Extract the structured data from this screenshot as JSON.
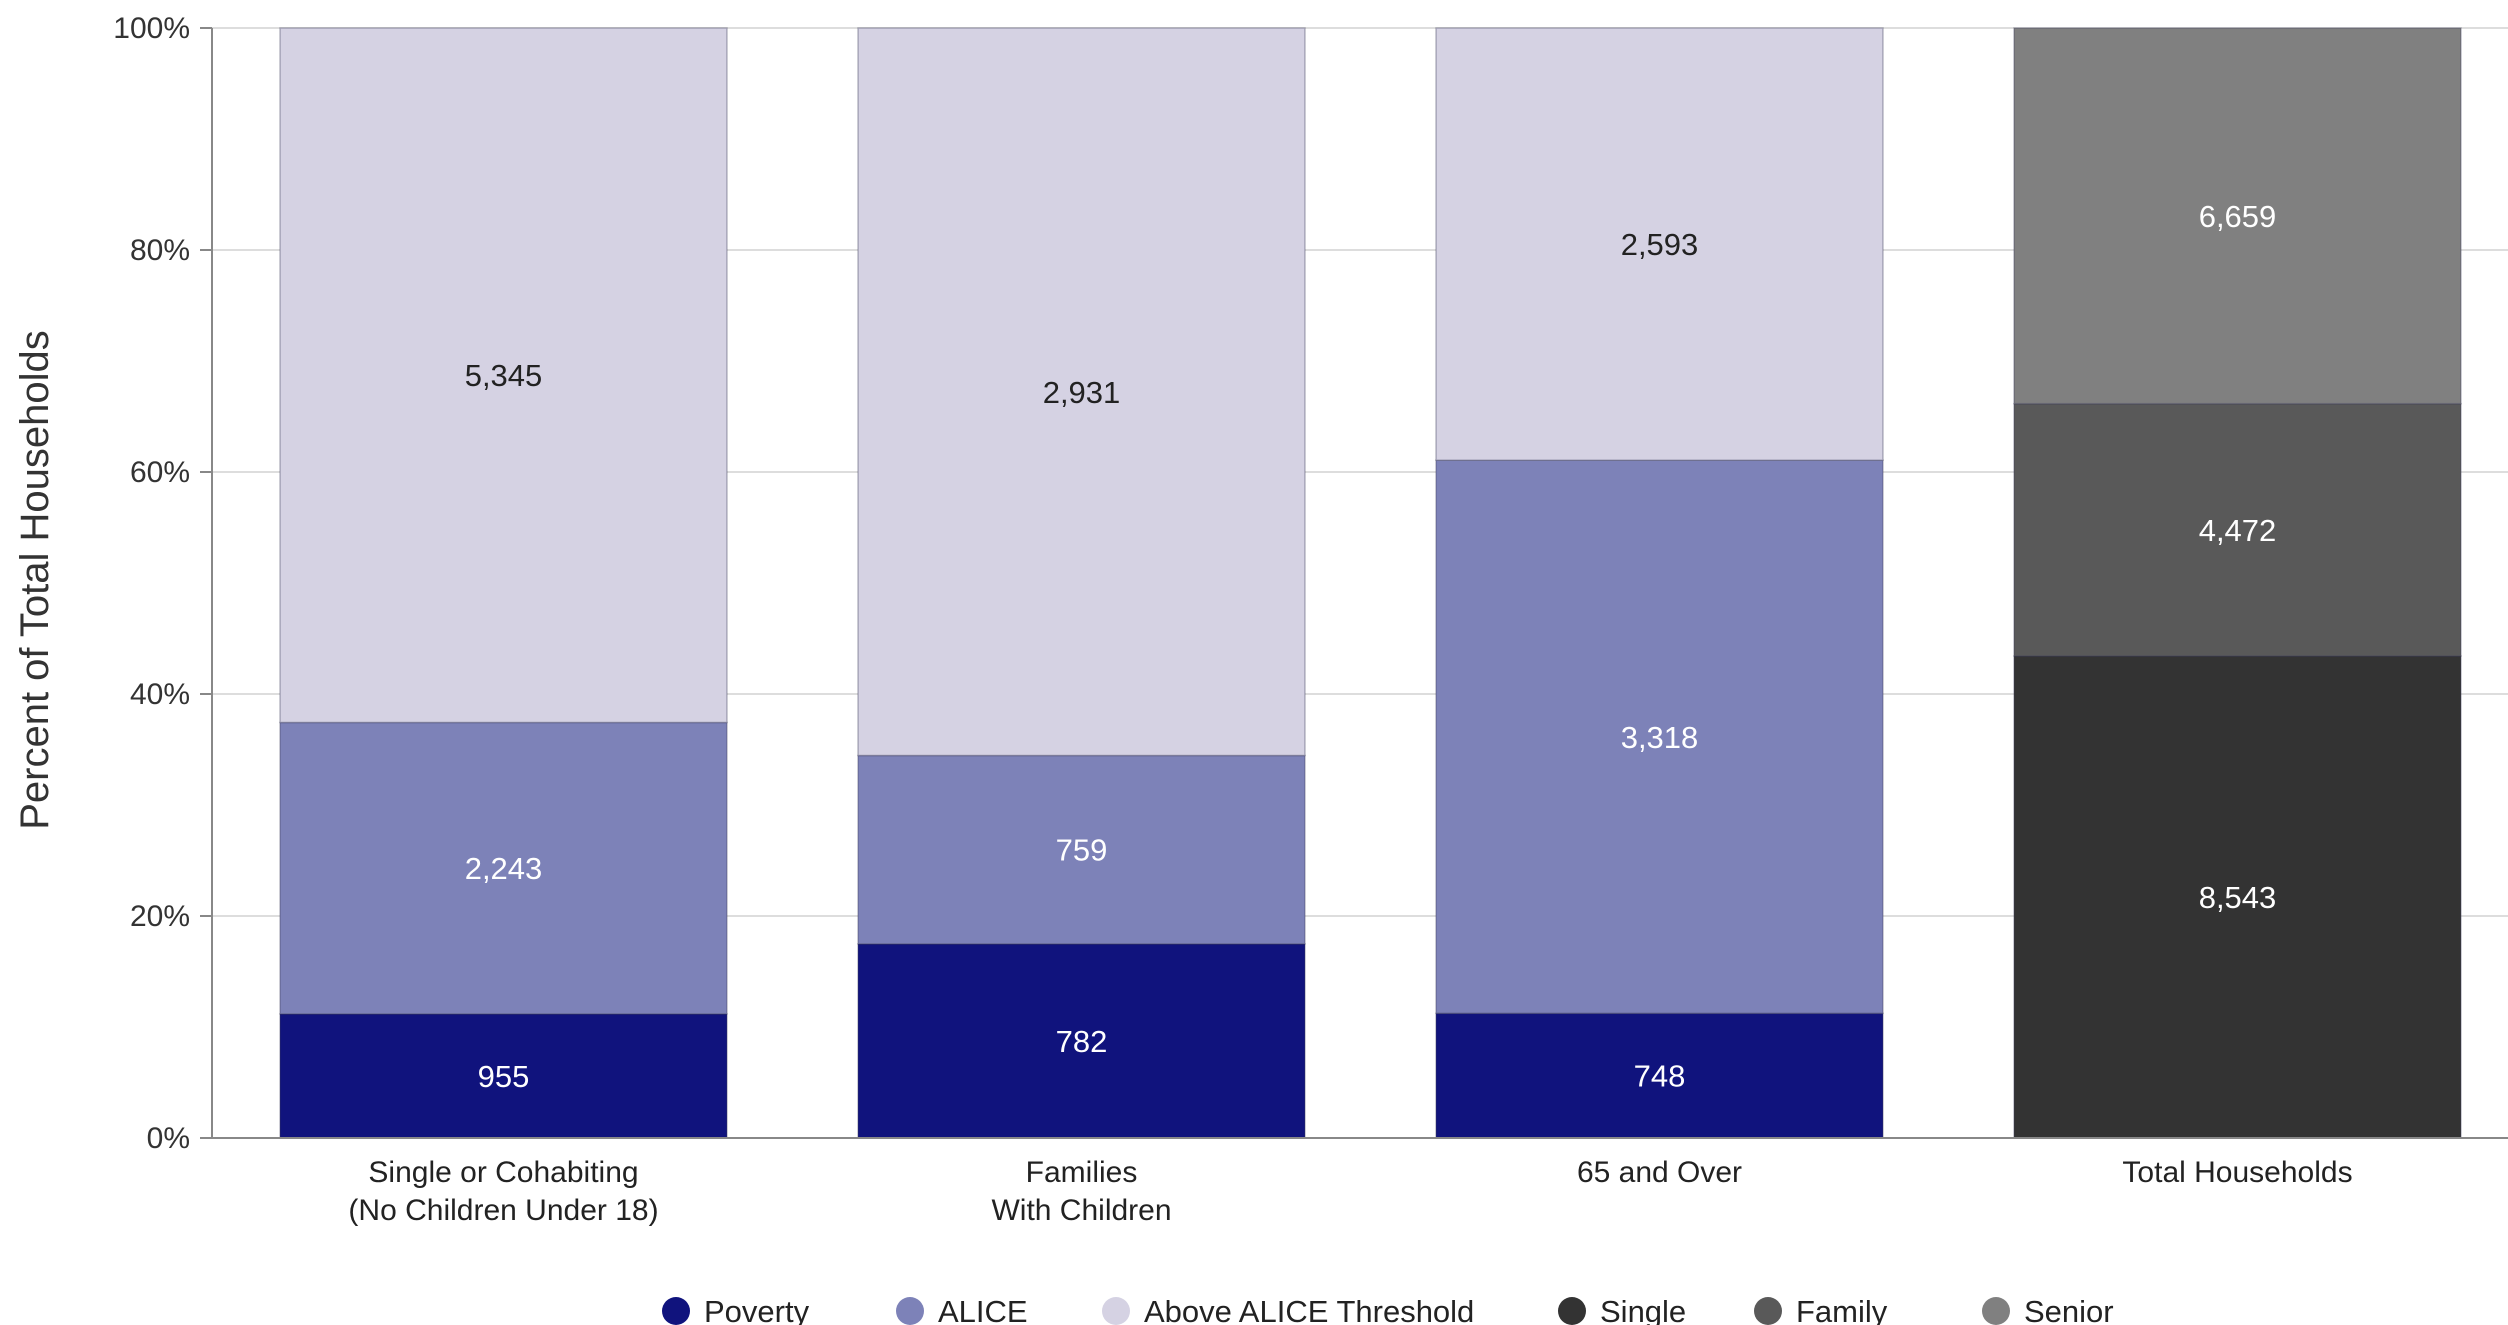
{
  "chart_data": {
    "type": "bar",
    "stacked": true,
    "normalized": true,
    "ylabel": "Percent of Total Households",
    "ylim": [
      0,
      100
    ],
    "yticks": [
      "0%",
      "20%",
      "40%",
      "60%",
      "80%",
      "100%"
    ],
    "grid": true,
    "legend_position": "bottom",
    "categories": [
      [
        "Single or Cohabiting",
        "(No Children Under 18)"
      ],
      [
        "Families",
        "With Children"
      ],
      [
        "65 and Over"
      ],
      [
        "Total Households"
      ]
    ],
    "bars": [
      {
        "segments": [
          {
            "series": "Poverty",
            "value": 955,
            "label": "955"
          },
          {
            "series": "ALICE",
            "value": 2243,
            "label": "2,243"
          },
          {
            "series": "Above ALICE Threshold",
            "value": 5345,
            "label": "5,345"
          }
        ]
      },
      {
        "segments": [
          {
            "series": "Poverty",
            "value": 782,
            "label": "782"
          },
          {
            "series": "ALICE",
            "value": 759,
            "label": "759"
          },
          {
            "series": "Above ALICE Threshold",
            "value": 2931,
            "label": "2,931"
          }
        ]
      },
      {
        "segments": [
          {
            "series": "Poverty",
            "value": 748,
            "label": "748"
          },
          {
            "series": "ALICE",
            "value": 3318,
            "label": "3,318"
          },
          {
            "series": "Above ALICE Threshold",
            "value": 2593,
            "label": "2,593"
          }
        ]
      },
      {
        "segments": [
          {
            "series": "Single",
            "value": 8543,
            "label": "8,543"
          },
          {
            "series": "Family",
            "value": 4472,
            "label": "4,472"
          },
          {
            "series": "Senior",
            "value": 6659,
            "label": "6,659"
          }
        ]
      }
    ],
    "series": [
      {
        "name": "Poverty",
        "color": "#10137d",
        "label_color": "#ffffff"
      },
      {
        "name": "ALICE",
        "color": "#7d82b8",
        "label_color": "#ffffff"
      },
      {
        "name": "Above ALICE Threshold",
        "color": "#d5d2e3",
        "label_color": "#222222"
      },
      {
        "name": "Single",
        "color": "#333333",
        "label_color": "#ffffff"
      },
      {
        "name": "Family",
        "color": "#595959",
        "label_color": "#ffffff"
      },
      {
        "name": "Senior",
        "color": "#808080",
        "label_color": "#ffffff"
      }
    ]
  }
}
